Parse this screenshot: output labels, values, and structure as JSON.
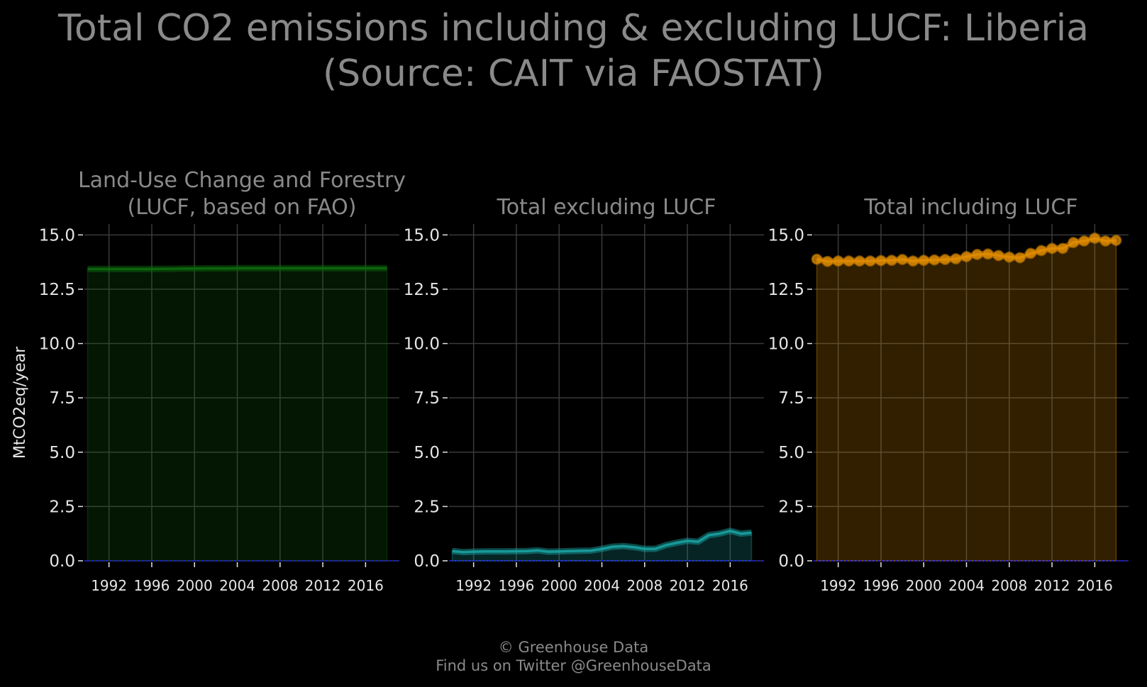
{
  "title": {
    "line1": "Total CO2 emissions including & excluding LUCF: Liberia",
    "line2": "(Source: CAIT via FAOSTAT)"
  },
  "ylabel": "MtCO2eq/year",
  "footer": {
    "line1": "© Greenhouse Data",
    "line2": "Find us on Twitter @GreenhouseData"
  },
  "colors": {
    "background": "#000000",
    "text": "#8a8a8a",
    "tick": "#e6e6e6",
    "grid": "#3a3a3a",
    "zero_line": "#1a1aff",
    "lucf": "#0d6b0d",
    "excl": "#1aa3a3",
    "incl": "#e08c00"
  },
  "chart_data": [
    {
      "type": "area",
      "title": [
        "Land-Use Change and Forestry",
        "(LUCF, based on FAO)"
      ],
      "series": [
        {
          "x": [
            1990,
            1991,
            1992,
            1993,
            1994,
            1995,
            1996,
            1997,
            1998,
            1999,
            2000,
            2001,
            2002,
            2003,
            2004,
            2005,
            2006,
            2007,
            2008,
            2009,
            2010,
            2011,
            2012,
            2013,
            2014,
            2015,
            2016,
            2017,
            2018
          ],
          "values": [
            13.43,
            13.43,
            13.43,
            13.43,
            13.43,
            13.43,
            13.43,
            13.44,
            13.44,
            13.45,
            13.45,
            13.46,
            13.46,
            13.46,
            13.47,
            13.47,
            13.47,
            13.47,
            13.47,
            13.47,
            13.47,
            13.47,
            13.47,
            13.47,
            13.47,
            13.47,
            13.47,
            13.47,
            13.47
          ]
        }
      ],
      "xticks": [
        "1992",
        "1996",
        "2000",
        "2004",
        "2008",
        "2012",
        "2016"
      ],
      "ylim": [
        0,
        15.5
      ],
      "yticks": [
        "0.0",
        "2.5",
        "5.0",
        "7.5",
        "10.0",
        "12.5",
        "15.0"
      ],
      "markers": false,
      "color": "lucf",
      "grid": true
    },
    {
      "type": "area",
      "title": [
        "Total excluding LUCF"
      ],
      "series": [
        {
          "x": [
            1990,
            1991,
            1992,
            1993,
            1994,
            1995,
            1996,
            1997,
            1998,
            1999,
            2000,
            2001,
            2002,
            2003,
            2004,
            2005,
            2006,
            2007,
            2008,
            2009,
            2010,
            2011,
            2012,
            2013,
            2014,
            2015,
            2016,
            2017,
            2018
          ],
          "values": [
            0.45,
            0.4,
            0.42,
            0.43,
            0.43,
            0.43,
            0.44,
            0.45,
            0.48,
            0.42,
            0.43,
            0.45,
            0.46,
            0.47,
            0.55,
            0.65,
            0.68,
            0.63,
            0.55,
            0.55,
            0.72,
            0.83,
            0.92,
            0.88,
            1.18,
            1.25,
            1.38,
            1.25,
            1.3
          ]
        }
      ],
      "xticks": [
        "1992",
        "1996",
        "2000",
        "2004",
        "2008",
        "2012",
        "2016"
      ],
      "ylim": [
        0,
        15.5
      ],
      "yticks": [
        "0.0",
        "2.5",
        "5.0",
        "7.5",
        "10.0",
        "12.5",
        "15.0"
      ],
      "markers": false,
      "color": "excl",
      "grid": true
    },
    {
      "type": "area",
      "title": [
        "Total including LUCF"
      ],
      "series": [
        {
          "x": [
            1990,
            1991,
            1992,
            1993,
            1994,
            1995,
            1996,
            1997,
            1998,
            1999,
            2000,
            2001,
            2002,
            2003,
            2004,
            2005,
            2006,
            2007,
            2008,
            2009,
            2010,
            2011,
            2012,
            2013,
            2014,
            2015,
            2016,
            2017,
            2018
          ],
          "values": [
            13.88,
            13.78,
            13.8,
            13.8,
            13.8,
            13.8,
            13.82,
            13.83,
            13.87,
            13.8,
            13.83,
            13.85,
            13.87,
            13.9,
            14.0,
            14.1,
            14.12,
            14.05,
            13.98,
            13.95,
            14.15,
            14.28,
            14.38,
            14.38,
            14.65,
            14.72,
            14.85,
            14.72,
            14.75
          ]
        }
      ],
      "xticks": [
        "1992",
        "1996",
        "2000",
        "2004",
        "2008",
        "2012",
        "2016"
      ],
      "ylim": [
        0,
        15.5
      ],
      "yticks": [
        "0.0",
        "2.5",
        "5.0",
        "7.5",
        "10.0",
        "12.5",
        "15.0"
      ],
      "markers": true,
      "color": "incl",
      "grid": true
    }
  ]
}
